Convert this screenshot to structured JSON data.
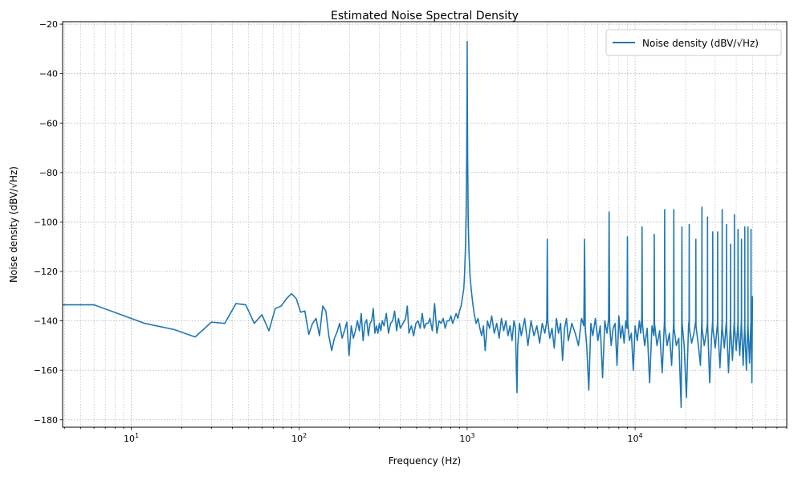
{
  "chart_data": {
    "type": "line",
    "title": "Estimated Noise Spectral Density",
    "xlabel": "Frequency (Hz)",
    "ylabel": "Noise density (dBV/√Hz)",
    "xscale": "log",
    "xlim": [
      3.9,
      80000
    ],
    "ylim": [
      -183,
      -19
    ],
    "xticks": [
      {
        "value": 10,
        "base": "10",
        "exp": "1"
      },
      {
        "value": 100,
        "base": "10",
        "exp": "2"
      },
      {
        "value": 1000,
        "base": "10",
        "exp": "3"
      },
      {
        "value": 10000,
        "base": "10",
        "exp": "4"
      }
    ],
    "yticks": [
      -20,
      -40,
      -60,
      -80,
      -100,
      -120,
      -140,
      -160,
      -180
    ],
    "ytick_labels": [
      "−20",
      "−40",
      "−60",
      "−80",
      "−100",
      "−120",
      "−140",
      "−160",
      "−180"
    ],
    "grid": "major and minor, dotted",
    "legend_position": "upper-right",
    "series": [
      {
        "name": "Noise density (dBV/√Hz)",
        "color": "#1f77b4",
        "points": [
          [
            3.9,
            -133.5
          ],
          [
            6,
            -133.5
          ],
          [
            12,
            -141
          ],
          [
            18,
            -143.5
          ],
          [
            24,
            -146.5
          ],
          [
            30,
            -140.5
          ],
          [
            36,
            -141
          ],
          [
            42,
            -133
          ],
          [
            48,
            -133.5
          ],
          [
            54,
            -141
          ],
          [
            60,
            -137.5
          ],
          [
            66,
            -144
          ],
          [
            72,
            -135
          ],
          [
            78,
            -134
          ],
          [
            84,
            -131
          ],
          [
            90,
            -129
          ],
          [
            96,
            -131
          ],
          [
            102,
            -136.5
          ],
          [
            108,
            -136
          ],
          [
            114,
            -145.5
          ],
          [
            120,
            -141
          ],
          [
            126,
            -139
          ],
          [
            132,
            -146
          ],
          [
            138,
            -134
          ],
          [
            144,
            -136
          ],
          [
            150,
            -146
          ],
          [
            156,
            -152
          ],
          [
            162,
            -147
          ],
          [
            168,
            -144.5
          ],
          [
            174,
            -141
          ],
          [
            180,
            -147
          ],
          [
            186,
            -144
          ],
          [
            192,
            -140.5
          ],
          [
            198,
            -154
          ],
          [
            204,
            -142
          ],
          [
            210,
            -147
          ],
          [
            216,
            -144
          ],
          [
            222,
            -140
          ],
          [
            228,
            -144
          ],
          [
            234,
            -137
          ],
          [
            240,
            -148
          ],
          [
            246,
            -141
          ],
          [
            252,
            -139.5
          ],
          [
            258,
            -146
          ],
          [
            264,
            -141
          ],
          [
            270,
            -140
          ],
          [
            276,
            -135
          ],
          [
            282,
            -145
          ],
          [
            288,
            -142
          ],
          [
            294,
            -145
          ],
          [
            300,
            -141
          ],
          [
            306,
            -144
          ],
          [
            312,
            -140
          ],
          [
            320,
            -142
          ],
          [
            330,
            -137
          ],
          [
            340,
            -145
          ],
          [
            350,
            -141
          ],
          [
            360,
            -140
          ],
          [
            370,
            -136
          ],
          [
            380,
            -144
          ],
          [
            390,
            -139
          ],
          [
            400,
            -143
          ],
          [
            415,
            -141
          ],
          [
            430,
            -139
          ],
          [
            440,
            -134
          ],
          [
            450,
            -145
          ],
          [
            465,
            -142
          ],
          [
            480,
            -146
          ],
          [
            495,
            -141
          ],
          [
            510,
            -140
          ],
          [
            525,
            -143
          ],
          [
            540,
            -137
          ],
          [
            555,
            -143
          ],
          [
            570,
            -141
          ],
          [
            585,
            -141
          ],
          [
            600,
            -139
          ],
          [
            620,
            -144
          ],
          [
            640,
            -133
          ],
          [
            660,
            -145
          ],
          [
            680,
            -140
          ],
          [
            700,
            -141
          ],
          [
            720,
            -139
          ],
          [
            740,
            -143
          ],
          [
            760,
            -140
          ],
          [
            780,
            -140
          ],
          [
            800,
            -138
          ],
          [
            820,
            -141
          ],
          [
            840,
            -139
          ],
          [
            860,
            -137
          ],
          [
            880,
            -139
          ],
          [
            900,
            -136
          ],
          [
            920,
            -134
          ],
          [
            940,
            -130
          ],
          [
            955,
            -127
          ],
          [
            965,
            -121
          ],
          [
            975,
            -112
          ],
          [
            985,
            -98
          ],
          [
            993,
            -75
          ],
          [
            998,
            -45
          ],
          [
            1000,
            -27
          ],
          [
            1002,
            -45
          ],
          [
            1007,
            -75
          ],
          [
            1015,
            -100
          ],
          [
            1025,
            -112
          ],
          [
            1040,
            -122
          ],
          [
            1060,
            -128
          ],
          [
            1080,
            -133
          ],
          [
            1100,
            -137
          ],
          [
            1130,
            -141
          ],
          [
            1160,
            -139
          ],
          [
            1190,
            -143
          ],
          [
            1220,
            -146
          ],
          [
            1250,
            -142
          ],
          [
            1280,
            -152
          ],
          [
            1320,
            -140
          ],
          [
            1360,
            -143
          ],
          [
            1400,
            -138
          ],
          [
            1450,
            -145
          ],
          [
            1500,
            -141
          ],
          [
            1550,
            -147
          ],
          [
            1600,
            -139
          ],
          [
            1650,
            -144
          ],
          [
            1700,
            -140
          ],
          [
            1750,
            -146
          ],
          [
            1800,
            -142
          ],
          [
            1850,
            -148
          ],
          [
            1900,
            -140
          ],
          [
            1940,
            -143
          ],
          [
            1960,
            -158
          ],
          [
            1980,
            -169
          ],
          [
            2000,
            -150
          ],
          [
            2050,
            -141
          ],
          [
            2100,
            -146
          ],
          [
            2200,
            -139
          ],
          [
            2300,
            -150
          ],
          [
            2400,
            -140
          ],
          [
            2500,
            -146
          ],
          [
            2600,
            -142
          ],
          [
            2700,
            -149
          ],
          [
            2800,
            -141
          ],
          [
            2900,
            -145
          ],
          [
            2980,
            -140
          ],
          [
            3000,
            -107
          ],
          [
            3020,
            -140
          ],
          [
            3100,
            -147
          ],
          [
            3200,
            -143
          ],
          [
            3300,
            -151
          ],
          [
            3400,
            -139
          ],
          [
            3500,
            -145
          ],
          [
            3600,
            -141
          ],
          [
            3700,
            -156
          ],
          [
            3800,
            -143
          ],
          [
            3900,
            -139
          ],
          [
            4000,
            -148
          ],
          [
            4200,
            -141
          ],
          [
            4400,
            -145
          ],
          [
            4600,
            -150
          ],
          [
            4800,
            -139
          ],
          [
            4950,
            -142
          ],
          [
            5000,
            -107
          ],
          [
            5050,
            -143
          ],
          [
            5150,
            -150
          ],
          [
            5300,
            -168
          ],
          [
            5450,
            -141
          ],
          [
            5600,
            -146
          ],
          [
            5800,
            -139
          ],
          [
            6000,
            -148
          ],
          [
            6200,
            -142
          ],
          [
            6400,
            -163
          ],
          [
            6600,
            -140
          ],
          [
            6800,
            -145
          ],
          [
            6950,
            -139
          ],
          [
            7000,
            -96
          ],
          [
            7050,
            -141
          ],
          [
            7200,
            -150
          ],
          [
            7400,
            -143
          ],
          [
            7600,
            -141
          ],
          [
            7800,
            -158
          ],
          [
            8000,
            -138
          ],
          [
            8200,
            -147
          ],
          [
            8400,
            -142
          ],
          [
            8600,
            -149
          ],
          [
            8800,
            -140
          ],
          [
            8950,
            -143
          ],
          [
            9000,
            -106
          ],
          [
            9050,
            -141
          ],
          [
            9250,
            -148
          ],
          [
            9500,
            -145
          ],
          [
            9750,
            -160
          ],
          [
            10000,
            -142
          ],
          [
            10300,
            -148
          ],
          [
            10600,
            -140
          ],
          [
            10800,
            -145
          ],
          [
            10950,
            -139
          ],
          [
            11000,
            -102
          ],
          [
            11050,
            -141
          ],
          [
            11400,
            -150
          ],
          [
            11800,
            -143
          ],
          [
            12200,
            -165
          ],
          [
            12600,
            -142
          ],
          [
            12950,
            -146
          ],
          [
            13000,
            -105
          ],
          [
            13050,
            -141
          ],
          [
            13500,
            -150
          ],
          [
            14000,
            -144
          ],
          [
            14500,
            -161
          ],
          [
            14950,
            -140
          ],
          [
            15000,
            -95
          ],
          [
            15050,
            -142
          ],
          [
            15500,
            -150
          ],
          [
            16000,
            -145
          ],
          [
            16500,
            -158
          ],
          [
            16950,
            -141
          ],
          [
            17000,
            -95
          ],
          [
            17050,
            -143
          ],
          [
            17600,
            -150
          ],
          [
            18200,
            -147
          ],
          [
            18800,
            -175
          ],
          [
            18950,
            -140
          ],
          [
            19000,
            -102
          ],
          [
            19050,
            -141
          ],
          [
            19600,
            -150
          ],
          [
            20200,
            -171
          ],
          [
            20800,
            -142
          ],
          [
            20950,
            -140
          ],
          [
            21000,
            -101
          ],
          [
            21050,
            -143
          ],
          [
            21700,
            -149
          ],
          [
            22400,
            -145
          ],
          [
            22950,
            -140
          ],
          [
            23000,
            -107
          ],
          [
            23050,
            -142
          ],
          [
            23800,
            -150
          ],
          [
            24500,
            -158
          ],
          [
            24950,
            -140
          ],
          [
            25000,
            -94
          ],
          [
            25050,
            -143
          ],
          [
            25800,
            -150
          ],
          [
            26500,
            -145
          ],
          [
            26950,
            -141
          ],
          [
            27000,
            -98
          ],
          [
            27050,
            -142
          ],
          [
            27800,
            -165
          ],
          [
            28500,
            -147
          ],
          [
            28950,
            -140
          ],
          [
            29000,
            -104
          ],
          [
            29050,
            -143
          ],
          [
            30000,
            -151
          ],
          [
            30950,
            -141
          ],
          [
            31000,
            -104
          ],
          [
            31050,
            -142
          ],
          [
            32000,
            -159
          ],
          [
            32950,
            -141
          ],
          [
            33000,
            -95
          ],
          [
            33050,
            -143
          ],
          [
            34000,
            -151
          ],
          [
            34950,
            -140
          ],
          [
            35000,
            -101
          ],
          [
            35050,
            -142
          ],
          [
            36000,
            -161
          ],
          [
            36950,
            -141
          ],
          [
            37000,
            -109
          ],
          [
            37050,
            -143
          ],
          [
            38000,
            -156
          ],
          [
            38950,
            -140
          ],
          [
            39000,
            -97
          ],
          [
            39050,
            -142
          ],
          [
            40000,
            -152
          ],
          [
            40950,
            -141
          ],
          [
            41000,
            -103
          ],
          [
            41050,
            -143
          ],
          [
            42000,
            -154
          ],
          [
            42950,
            -140
          ],
          [
            43000,
            -107
          ],
          [
            43050,
            -142
          ],
          [
            44000,
            -158
          ],
          [
            44950,
            -141
          ],
          [
            45000,
            -102
          ],
          [
            45050,
            -143
          ],
          [
            46000,
            -160
          ],
          [
            46950,
            -140
          ],
          [
            47000,
            -102
          ],
          [
            47050,
            -142
          ],
          [
            48000,
            -157
          ],
          [
            48950,
            -140
          ],
          [
            49000,
            -103
          ],
          [
            49050,
            -143
          ],
          [
            49600,
            -165
          ],
          [
            50000,
            -130
          ]
        ]
      }
    ]
  }
}
